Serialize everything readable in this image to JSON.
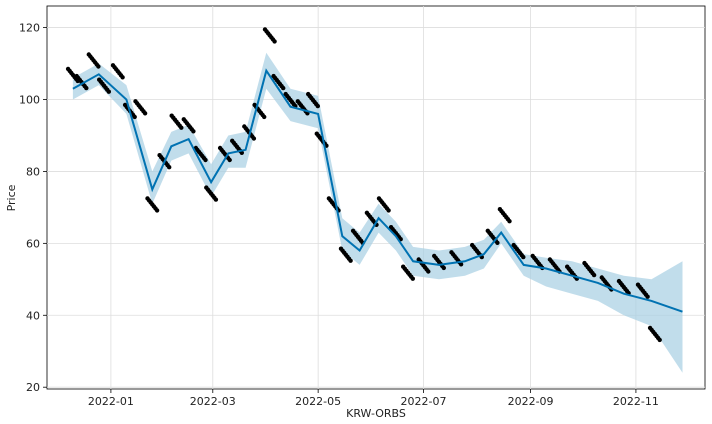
{
  "chart_data": {
    "type": "line",
    "xlabel": "KRW-ORBS",
    "ylabel": "Price",
    "ylim": [
      19.5,
      126
    ],
    "xlim": [
      "2021-11-25",
      "2022-12-11"
    ],
    "grid": true,
    "x_ticks": [
      "2022-01",
      "2022-03",
      "2022-05",
      "2022-07",
      "2022-09",
      "2022-11"
    ],
    "y_ticks": [
      20,
      40,
      60,
      80,
      100,
      120
    ],
    "series": [
      {
        "role": "forecast",
        "color": "#0072B2",
        "x": [
          "2021-12-10",
          "2021-12-25",
          "2022-01-10",
          "2022-01-25",
          "2022-02-05",
          "2022-02-15",
          "2022-02-28",
          "2022-03-10",
          "2022-03-20",
          "2022-04-01",
          "2022-04-15",
          "2022-05-01",
          "2022-05-15",
          "2022-05-25",
          "2022-06-05",
          "2022-06-15",
          "2022-06-25",
          "2022-07-10",
          "2022-07-25",
          "2022-08-05",
          "2022-08-15",
          "2022-08-28",
          "2022-09-10",
          "2022-09-25",
          "2022-10-10",
          "2022-10-25",
          "2022-11-10",
          "2022-11-28"
        ],
        "values": [
          103,
          107,
          100,
          75,
          87,
          89,
          77,
          85,
          86,
          108,
          98,
          96,
          62,
          58,
          67,
          62,
          55,
          54,
          55,
          57,
          63,
          54,
          53,
          51,
          49,
          46,
          44,
          41
        ]
      },
      {
        "role": "uncertainty-upper",
        "color": "#a6cee3",
        "values": [
          106,
          110,
          104,
          80,
          91,
          93,
          82,
          90,
          91,
          113,
          103,
          101,
          67,
          63,
          71,
          66,
          59,
          58,
          59,
          61,
          66,
          57,
          56,
          55,
          53,
          51,
          50,
          55
        ]
      },
      {
        "role": "uncertainty-lower",
        "color": "#a6cee3",
        "values": [
          100,
          104,
          96,
          71,
          83,
          85,
          73,
          81,
          81,
          103,
          94,
          92,
          58,
          54,
          63,
          58,
          51,
          50,
          51,
          53,
          60,
          51,
          48,
          46,
          44,
          40,
          37,
          24
        ]
      },
      {
        "role": "observed",
        "color": "#000000",
        "x": [
          "2021-12-10",
          "2021-12-15",
          "2021-12-22",
          "2021-12-28",
          "2022-01-05",
          "2022-01-12",
          "2022-01-18",
          "2022-01-25",
          "2022-02-01",
          "2022-02-08",
          "2022-02-15",
          "2022-02-22",
          "2022-02-28",
          "2022-03-08",
          "2022-03-15",
          "2022-03-22",
          "2022-03-28",
          "2022-04-03",
          "2022-04-08",
          "2022-04-15",
          "2022-04-22",
          "2022-04-28",
          "2022-05-03",
          "2022-05-10",
          "2022-05-17",
          "2022-05-24",
          "2022-06-01",
          "2022-06-08",
          "2022-06-15",
          "2022-06-22",
          "2022-07-01",
          "2022-07-10",
          "2022-07-20",
          "2022-08-01",
          "2022-08-10",
          "2022-08-17",
          "2022-08-25",
          "2022-09-05",
          "2022-09-15",
          "2022-09-25",
          "2022-10-05",
          "2022-10-15",
          "2022-10-25",
          "2022-11-05",
          "2022-11-12"
        ],
        "values": [
          106,
          104,
          110,
          103,
          107,
          96,
          97,
          70,
          82,
          93,
          92,
          84,
          73,
          84,
          86,
          90,
          96,
          117,
          104,
          99,
          97,
          99,
          88,
          70,
          56,
          61,
          66,
          70,
          62,
          51,
          53,
          54,
          55,
          57,
          61,
          67,
          57,
          54,
          53,
          51,
          52,
          48,
          47,
          46,
          34
        ]
      }
    ]
  }
}
